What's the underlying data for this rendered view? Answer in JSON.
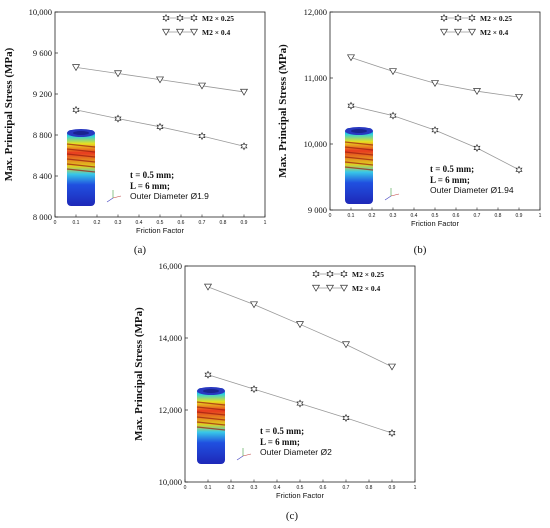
{
  "chart_data": [
    {
      "type": "line",
      "panel_label": "(a)",
      "xlabel": "Friction Factor",
      "ylabel": "Max. Principal Stress (MPa)",
      "xlim": [
        0,
        1
      ],
      "ylim": [
        8000,
        10000
      ],
      "x_ticks": [
        "0",
        "0.1",
        "0.2",
        "0.3",
        "0.4",
        "0.5",
        "0.6",
        "0.7",
        "0.8",
        "0.9",
        "1"
      ],
      "y_ticks": [
        "8 000",
        "8 400",
        "8 800",
        "9 200",
        "9 600",
        "10,000"
      ],
      "x": [
        0.1,
        0.3,
        0.5,
        0.7,
        0.9
      ],
      "series": [
        {
          "name": "M2 × 0.25",
          "marker": "star",
          "values": [
            9045,
            8960,
            8880,
            8790,
            8690
          ]
        },
        {
          "name": "M2 × 0.4",
          "marker": "triangle-down",
          "values": [
            9460,
            9400,
            9340,
            9280,
            9220
          ]
        }
      ],
      "annotations": [
        "t = 0.5 mm;",
        "L = 6 mm;",
        "Outer Diameter Ø1.9"
      ],
      "legend": "top-right",
      "grid": false
    },
    {
      "type": "line",
      "panel_label": "(b)",
      "xlabel": "Friction Factor",
      "ylabel": "Max. Principal Stress (MPa)",
      "xlim": [
        0,
        1
      ],
      "ylim": [
        9000,
        12000
      ],
      "x_ticks": [
        "0",
        "0.1",
        "0.2",
        "0.3",
        "0.4",
        "0.5",
        "0.6",
        "0.7",
        "0.8",
        "0.9",
        "1"
      ],
      "y_ticks": [
        "9 000",
        "10,000",
        "11,000",
        "12,000"
      ],
      "x": [
        0.1,
        0.3,
        0.5,
        0.7,
        0.9
      ],
      "series": [
        {
          "name": "M2 × 0.25",
          "marker": "star",
          "values": [
            10580,
            10430,
            10210,
            9940,
            9610
          ]
        },
        {
          "name": "M2 × 0.4",
          "marker": "triangle-down",
          "values": [
            11310,
            11100,
            10920,
            10800,
            10710
          ]
        }
      ],
      "annotations": [
        "t = 0.5 mm;",
        "L = 6 mm;",
        "Outer Diameter Ø1.94"
      ],
      "legend": "top-right",
      "grid": false
    },
    {
      "type": "line",
      "panel_label": "(c)",
      "xlabel": "Friction Factor",
      "ylabel": "Max. Principal Stress (MPa)",
      "xlim": [
        0,
        1
      ],
      "ylim": [
        10000,
        16000
      ],
      "x_ticks": [
        "0",
        "0.1",
        "0.2",
        "0.3",
        "0.4",
        "0.5",
        "0.6",
        "0.7",
        "0.8",
        "0.9",
        "1"
      ],
      "y_ticks": [
        "10,000",
        "12,000",
        "14,000",
        "16,000"
      ],
      "x": [
        0.1,
        0.3,
        0.5,
        0.7,
        0.9
      ],
      "series": [
        {
          "name": "M2 × 0.25",
          "marker": "star",
          "values": [
            12980,
            12580,
            12180,
            11780,
            11360
          ]
        },
        {
          "name": "M2 × 0.4",
          "marker": "triangle-down",
          "values": [
            15420,
            14930,
            14380,
            13820,
            13200
          ]
        }
      ],
      "annotations": [
        "t = 0.5 mm;",
        "L = 6 mm;",
        "Outer Diameter Ø2"
      ],
      "legend": "top-right",
      "grid": false
    }
  ],
  "colors": {
    "axis": "#222222",
    "line": "#999999",
    "marker": "#333333",
    "text": "#111111"
  }
}
